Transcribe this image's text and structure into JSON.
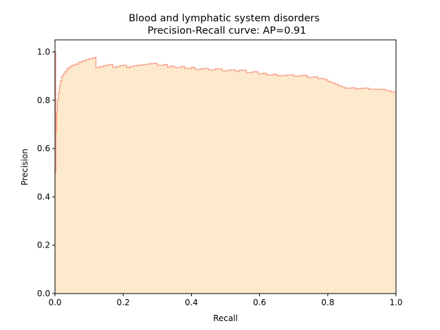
{
  "chart_data": {
    "type": "area",
    "title_line1": "Blood and lymphatic system disorders",
    "title_line2": "Precision-Recall curve: AP=0.91",
    "xlabel": "Recall",
    "ylabel": "Precision",
    "xlim": [
      0.0,
      1.0
    ],
    "ylim": [
      0.0,
      1.05
    ],
    "grid": false,
    "x_ticks": [
      {
        "value": 0.0,
        "label": "0.0"
      },
      {
        "value": 0.2,
        "label": "0.2"
      },
      {
        "value": 0.4,
        "label": "0.4"
      },
      {
        "value": 0.6,
        "label": "0.6"
      },
      {
        "value": 0.8,
        "label": "0.8"
      },
      {
        "value": 1.0,
        "label": "1.0"
      }
    ],
    "y_ticks": [
      {
        "value": 0.0,
        "label": "0.0"
      },
      {
        "value": 0.2,
        "label": "0.2"
      },
      {
        "value": 0.4,
        "label": "0.4"
      },
      {
        "value": 0.6,
        "label": "0.6"
      },
      {
        "value": 0.8,
        "label": "0.8"
      },
      {
        "value": 1.0,
        "label": "1.0"
      }
    ],
    "colors": {
      "line": "#f7a58c",
      "fill": "#fde9cc",
      "axes": "#000000"
    },
    "series": [
      {
        "step": "post",
        "points": [
          [
            0.0,
            1.0
          ],
          [
            0.002,
            0.5
          ],
          [
            0.003,
            0.67
          ],
          [
            0.005,
            0.75
          ],
          [
            0.007,
            0.8
          ],
          [
            0.01,
            0.83
          ],
          [
            0.013,
            0.86
          ],
          [
            0.016,
            0.88
          ],
          [
            0.02,
            0.9
          ],
          [
            0.025,
            0.91
          ],
          [
            0.03,
            0.92
          ],
          [
            0.035,
            0.93
          ],
          [
            0.04,
            0.935
          ],
          [
            0.045,
            0.94
          ],
          [
            0.05,
            0.945
          ],
          [
            0.06,
            0.95
          ],
          [
            0.07,
            0.958
          ],
          [
            0.08,
            0.963
          ],
          [
            0.09,
            0.968
          ],
          [
            0.1,
            0.972
          ],
          [
            0.11,
            0.975
          ],
          [
            0.118,
            0.977
          ],
          [
            0.12,
            0.935
          ],
          [
            0.13,
            0.938
          ],
          [
            0.14,
            0.942
          ],
          [
            0.15,
            0.945
          ],
          [
            0.16,
            0.948
          ],
          [
            0.17,
            0.935
          ],
          [
            0.18,
            0.94
          ],
          [
            0.19,
            0.943
          ],
          [
            0.2,
            0.945
          ],
          [
            0.21,
            0.935
          ],
          [
            0.22,
            0.94
          ],
          [
            0.23,
            0.942
          ],
          [
            0.24,
            0.944
          ],
          [
            0.25,
            0.946
          ],
          [
            0.26,
            0.948
          ],
          [
            0.27,
            0.95
          ],
          [
            0.28,
            0.952
          ],
          [
            0.29,
            0.953
          ],
          [
            0.3,
            0.945
          ],
          [
            0.32,
            0.948
          ],
          [
            0.33,
            0.938
          ],
          [
            0.34,
            0.942
          ],
          [
            0.35,
            0.935
          ],
          [
            0.37,
            0.94
          ],
          [
            0.38,
            0.932
          ],
          [
            0.4,
            0.936
          ],
          [
            0.41,
            0.928
          ],
          [
            0.43,
            0.932
          ],
          [
            0.45,
            0.926
          ],
          [
            0.47,
            0.93
          ],
          [
            0.49,
            0.922
          ],
          [
            0.51,
            0.925
          ],
          [
            0.53,
            0.92
          ],
          [
            0.54,
            0.924
          ],
          [
            0.555,
            0.925
          ],
          [
            0.56,
            0.915
          ],
          [
            0.58,
            0.918
          ],
          [
            0.595,
            0.91
          ],
          [
            0.61,
            0.912
          ],
          [
            0.62,
            0.905
          ],
          [
            0.64,
            0.908
          ],
          [
            0.65,
            0.902
          ],
          [
            0.68,
            0.905
          ],
          [
            0.7,
            0.9
          ],
          [
            0.72,
            0.903
          ],
          [
            0.74,
            0.895
          ],
          [
            0.76,
            0.897
          ],
          [
            0.77,
            0.89
          ],
          [
            0.79,
            0.885
          ],
          [
            0.8,
            0.878
          ],
          [
            0.81,
            0.872
          ],
          [
            0.82,
            0.866
          ],
          [
            0.83,
            0.86
          ],
          [
            0.84,
            0.855
          ],
          [
            0.85,
            0.85
          ],
          [
            0.87,
            0.852
          ],
          [
            0.88,
            0.848
          ],
          [
            0.9,
            0.85
          ],
          [
            0.92,
            0.846
          ],
          [
            0.95,
            0.845
          ],
          [
            0.97,
            0.84
          ],
          [
            0.985,
            0.835
          ],
          [
            1.0,
            0.835
          ]
        ]
      }
    ]
  }
}
